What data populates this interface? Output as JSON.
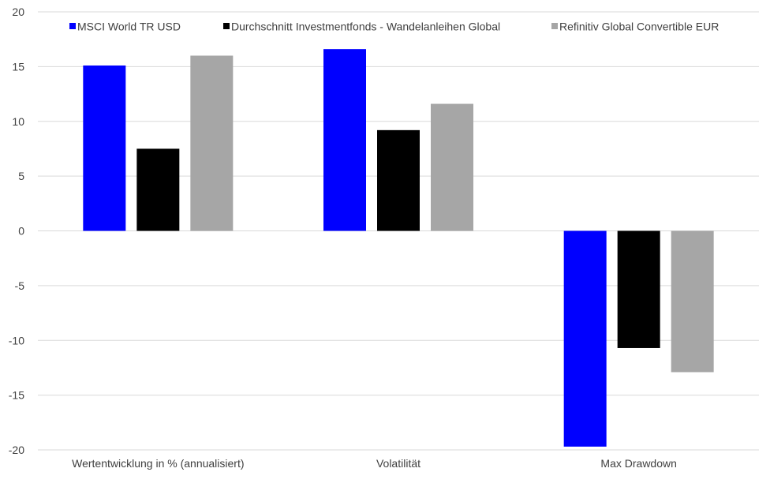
{
  "chart_data": {
    "type": "bar",
    "title": "",
    "xlabel": "",
    "ylabel": "",
    "categories": [
      "Wertentwicklung in % (annualisiert)",
      "Volatilität",
      "Max Drawdown"
    ],
    "series": [
      {
        "name": "MSCI World TR USD",
        "color": "#0000ff",
        "values": [
          15.1,
          16.6,
          -19.7
        ]
      },
      {
        "name": "Durchschnitt Investmentfonds - Wandelanleihen Global",
        "color": "#000000",
        "values": [
          7.5,
          9.2,
          -10.7
        ]
      },
      {
        "name": "Refinitiv Global Convertible EUR",
        "color": "#a6a6a6",
        "values": [
          16.0,
          11.6,
          -12.9
        ]
      }
    ],
    "ylim": [
      -20,
      20
    ],
    "yticks": [
      20,
      15,
      10,
      5,
      0,
      -5,
      -10,
      -15,
      -20
    ],
    "grid": true,
    "legend_position": "top"
  }
}
